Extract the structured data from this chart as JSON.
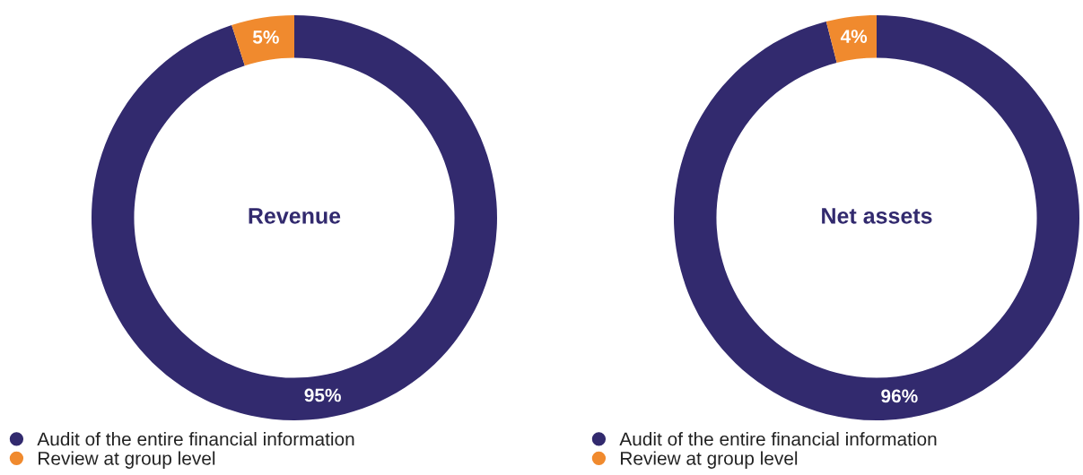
{
  "chart_data": [
    {
      "type": "donut",
      "title": "Revenue",
      "categories": [
        "Audit of the entire financial information",
        "Review at group level"
      ],
      "values": [
        95,
        5
      ],
      "colors": [
        "#322a6e",
        "#f08a2e"
      ],
      "value_labels": [
        "95%",
        "5%"
      ],
      "legend": "bottom"
    },
    {
      "type": "donut",
      "title": "Net assets",
      "categories": [
        "Audit of the entire financial information",
        "Review at group level"
      ],
      "values": [
        96,
        4
      ],
      "colors": [
        "#322a6e",
        "#f08a2e"
      ],
      "value_labels": [
        "96%",
        "4%"
      ],
      "legend": "bottom"
    }
  ]
}
